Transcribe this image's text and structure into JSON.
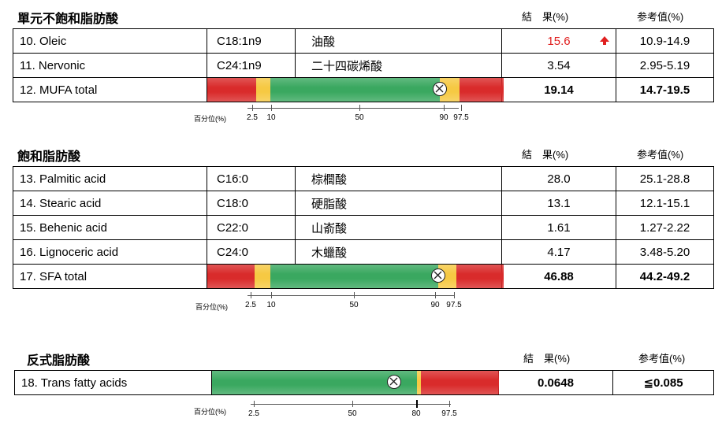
{
  "colors": {
    "red": "#d92b2b",
    "yellow": "#f6c943",
    "green": "#3aa860",
    "flag": "#e02020"
  },
  "scale_label": "百分位(%)",
  "sections": [
    {
      "title": "單元不飽和脂肪酸",
      "result_header": "結　果(%)",
      "ref_header": "参考值(%)",
      "rows": [
        {
          "name": "10.  Oleic",
          "code": "C18:1n9",
          "cn": "油酸",
          "result": "15.6",
          "ref": "10.9-14.9",
          "flag": "high"
        },
        {
          "name": "11.  Nervonic",
          "code": "C24:1n9",
          "cn": "二十四碳烯酸",
          "result": "3.54",
          "ref": "2.95-5.19"
        }
      ],
      "total": {
        "name": "12.  MUFA total",
        "result": "19.14",
        "ref": "14.7-19.5",
        "marker_percentile": 90
      },
      "ticks": [
        "2.5",
        "10",
        "50",
        "90",
        "97.5"
      ]
    },
    {
      "title": "飽和脂肪酸",
      "result_header": "結　果(%)",
      "ref_header": "参考值(%)",
      "rows": [
        {
          "name": "13.  Palmitic acid",
          "code": "C16:0",
          "cn": "棕櫚酸",
          "result": "28.0",
          "ref": "25.1-28.8"
        },
        {
          "name": "14.  Stearic acid",
          "code": "C18:0",
          "cn": "硬脂酸",
          "result": "13.1",
          "ref": "12.1-15.1"
        },
        {
          "name": "15.  Behenic acid",
          "code": "C22:0",
          "cn": "山嵛酸",
          "result": "1.61",
          "ref": "1.27-2.22"
        },
        {
          "name": "16.  Lignoceric acid",
          "code": "C24:0",
          "cn": "木蠟酸",
          "result": "4.17",
          "ref": "3.48-5.20"
        }
      ],
      "total": {
        "name": "17.  SFA total",
        "result": "46.88",
        "ref": "44.2-49.2",
        "marker_percentile": 90
      },
      "ticks": [
        "2.5",
        "10",
        "50",
        "90",
        "97.5"
      ]
    },
    {
      "title": "反式脂肪酸",
      "result_header": "結　果(%)",
      "ref_header": "参考值(%)",
      "total": {
        "name": "18.  Trans fatty acids",
        "result": "0.0648",
        "ref": "≦0.085",
        "marker_percentile": 73
      },
      "ticks": [
        "2.5",
        "50",
        "80",
        "97.5"
      ]
    }
  ]
}
